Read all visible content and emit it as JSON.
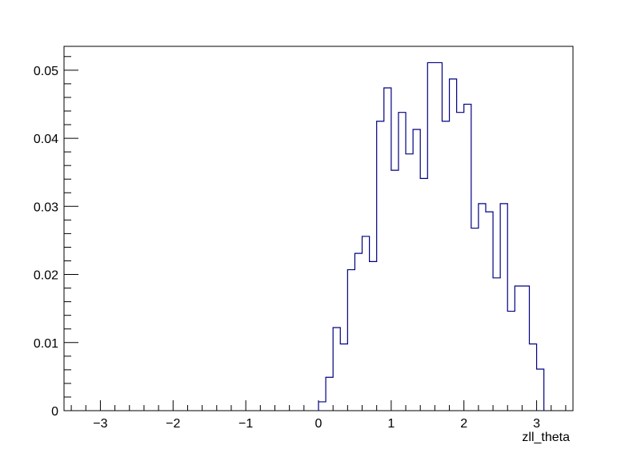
{
  "chart_data": {
    "type": "histogram",
    "title": "",
    "xlabel": "zll_theta",
    "ylabel": "",
    "xlim": [
      -3.5,
      3.5
    ],
    "ylim": [
      0,
      0.0535
    ],
    "grid": false,
    "legend": "none",
    "line_color": "#000080",
    "bin_width": 0.1,
    "x_ticks": [
      -3,
      -2,
      -1,
      0,
      1,
      2,
      3
    ],
    "x_tick_labels": [
      "−3",
      "−2",
      "−1",
      "0",
      "1",
      "2",
      "3"
    ],
    "y_ticks": [
      0,
      0.01,
      0.02,
      0.03,
      0.04,
      0.05
    ],
    "y_tick_labels": [
      "0",
      "0.01",
      "0.02",
      "0.03",
      "0.04",
      "0.05"
    ],
    "bins": [
      {
        "x0": 0.0,
        "y": 0.0013
      },
      {
        "x0": 0.1,
        "y": 0.0049
      },
      {
        "x0": 0.2,
        "y": 0.0122
      },
      {
        "x0": 0.3,
        "y": 0.0098
      },
      {
        "x0": 0.4,
        "y": 0.0207
      },
      {
        "x0": 0.5,
        "y": 0.0231
      },
      {
        "x0": 0.6,
        "y": 0.0256
      },
      {
        "x0": 0.7,
        "y": 0.0219
      },
      {
        "x0": 0.8,
        "y": 0.0425
      },
      {
        "x0": 0.9,
        "y": 0.0474
      },
      {
        "x0": 1.0,
        "y": 0.0353
      },
      {
        "x0": 1.1,
        "y": 0.0438
      },
      {
        "x0": 1.2,
        "y": 0.0377
      },
      {
        "x0": 1.3,
        "y": 0.0413
      },
      {
        "x0": 1.4,
        "y": 0.0341
      },
      {
        "x0": 1.5,
        "y": 0.0511
      },
      {
        "x0": 1.6,
        "y": 0.0511
      },
      {
        "x0": 1.7,
        "y": 0.0425
      },
      {
        "x0": 1.8,
        "y": 0.0487
      },
      {
        "x0": 1.9,
        "y": 0.0438
      },
      {
        "x0": 2.0,
        "y": 0.045
      },
      {
        "x0": 2.1,
        "y": 0.0268
      },
      {
        "x0": 2.2,
        "y": 0.0304
      },
      {
        "x0": 2.3,
        "y": 0.0292
      },
      {
        "x0": 2.4,
        "y": 0.0195
      },
      {
        "x0": 2.5,
        "y": 0.0304
      },
      {
        "x0": 2.6,
        "y": 0.0146
      },
      {
        "x0": 2.7,
        "y": 0.0183
      },
      {
        "x0": 2.8,
        "y": 0.0183
      },
      {
        "x0": 2.9,
        "y": 0.0098
      },
      {
        "x0": 3.0,
        "y": 0.0061
      }
    ]
  }
}
